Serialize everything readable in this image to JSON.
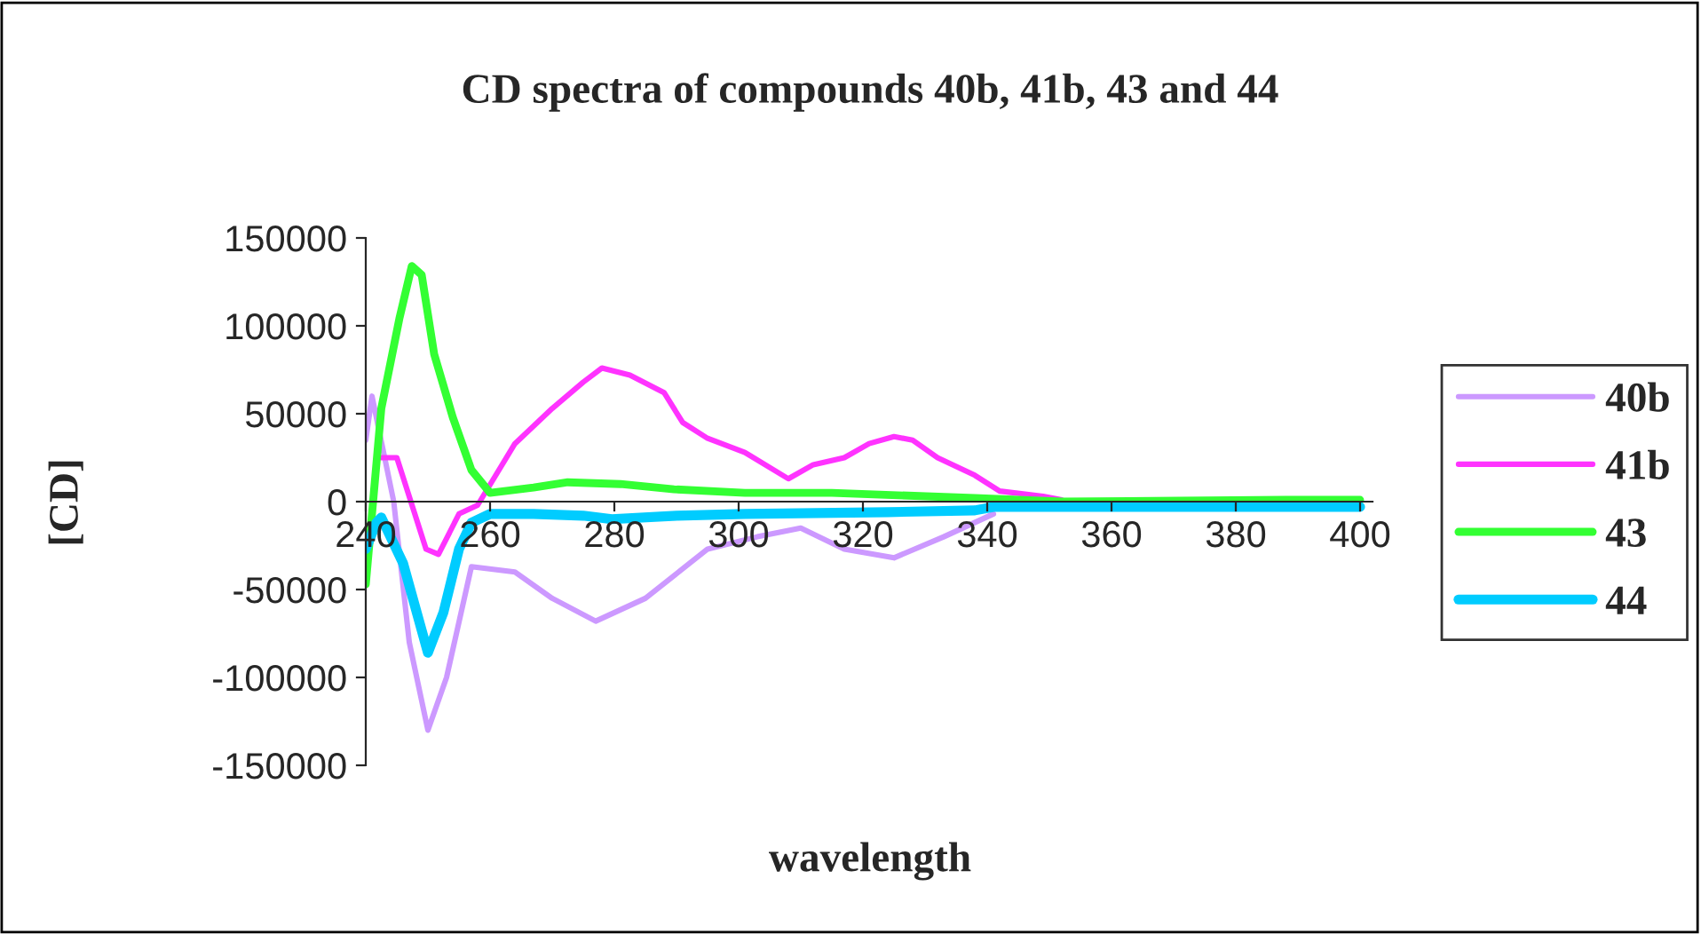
{
  "chart_data": {
    "type": "line",
    "title": "CD spectra of compounds 40b, 41b, 43 and 44",
    "xlabel": "wavelength",
    "ylabel": "[CD]",
    "xlim": [
      240,
      402
    ],
    "xticks": [
      240,
      260,
      280,
      300,
      320,
      340,
      360,
      380,
      400
    ],
    "ylim": [
      -150000,
      150000
    ],
    "yticks": [
      -150000,
      -100000,
      -50000,
      0,
      50000,
      100000,
      150000
    ],
    "grid": false,
    "legend": "right",
    "marker": "none",
    "line_style": "solid",
    "series": [
      {
        "name": "40b",
        "color": "#cc99ff",
        "x": [
          240,
          241,
          244.5,
          247,
          250,
          253,
          257,
          264,
          270,
          277,
          285,
          295,
          303,
          310,
          317,
          325,
          333,
          341
        ],
        "values": [
          35000,
          60000,
          0,
          -80000,
          -130000,
          -100000,
          -37000,
          -40000,
          -55000,
          -68000,
          -55000,
          -27000,
          -20000,
          -15000,
          -27000,
          -32000,
          -20000,
          -7000
        ]
      },
      {
        "name": "41b",
        "color": "#ff33ff",
        "x": [
          242.5,
          245,
          249.7,
          251.7,
          255,
          258,
          264,
          270,
          275,
          278,
          282.5,
          288,
          291,
          295,
          301,
          308,
          312,
          317,
          321,
          325,
          328,
          332,
          338,
          342,
          349,
          352
        ],
        "values": [
          25000,
          25000,
          -27000,
          -30000,
          -7000,
          -2000,
          33000,
          53000,
          68000,
          76000,
          72000,
          62000,
          45000,
          36000,
          28000,
          13000,
          21000,
          25000,
          33000,
          37000,
          35000,
          25000,
          15000,
          6000,
          3000,
          1000
        ]
      },
      {
        "name": "43",
        "color": "#33ff33",
        "x": [
          240,
          242.5,
          245.4,
          247.4,
          249,
          251,
          254,
          257,
          260,
          267,
          272.5,
          281,
          289.6,
          301,
          315,
          338,
          352,
          388,
          400
        ],
        "values": [
          -47000,
          53000,
          104000,
          134000,
          129000,
          84000,
          48000,
          18000,
          5000,
          8000,
          11000,
          10000,
          7000,
          5000,
          5000,
          2000,
          0,
          1000,
          1000
        ]
      },
      {
        "name": "44",
        "color": "#00ccff",
        "x": [
          240,
          241.7,
          242.5,
          246,
          250,
          252.5,
          255,
          257,
          260,
          267,
          275,
          279.6,
          290,
          301,
          324,
          338,
          341,
          370,
          400
        ],
        "values": [
          -27000,
          -12000,
          -9000,
          -35000,
          -86000,
          -63000,
          -27000,
          -12000,
          -7000,
          -7000,
          -8000,
          -10000,
          -8000,
          -7000,
          -6000,
          -5000,
          -3000,
          -3000,
          -3000
        ]
      }
    ]
  }
}
